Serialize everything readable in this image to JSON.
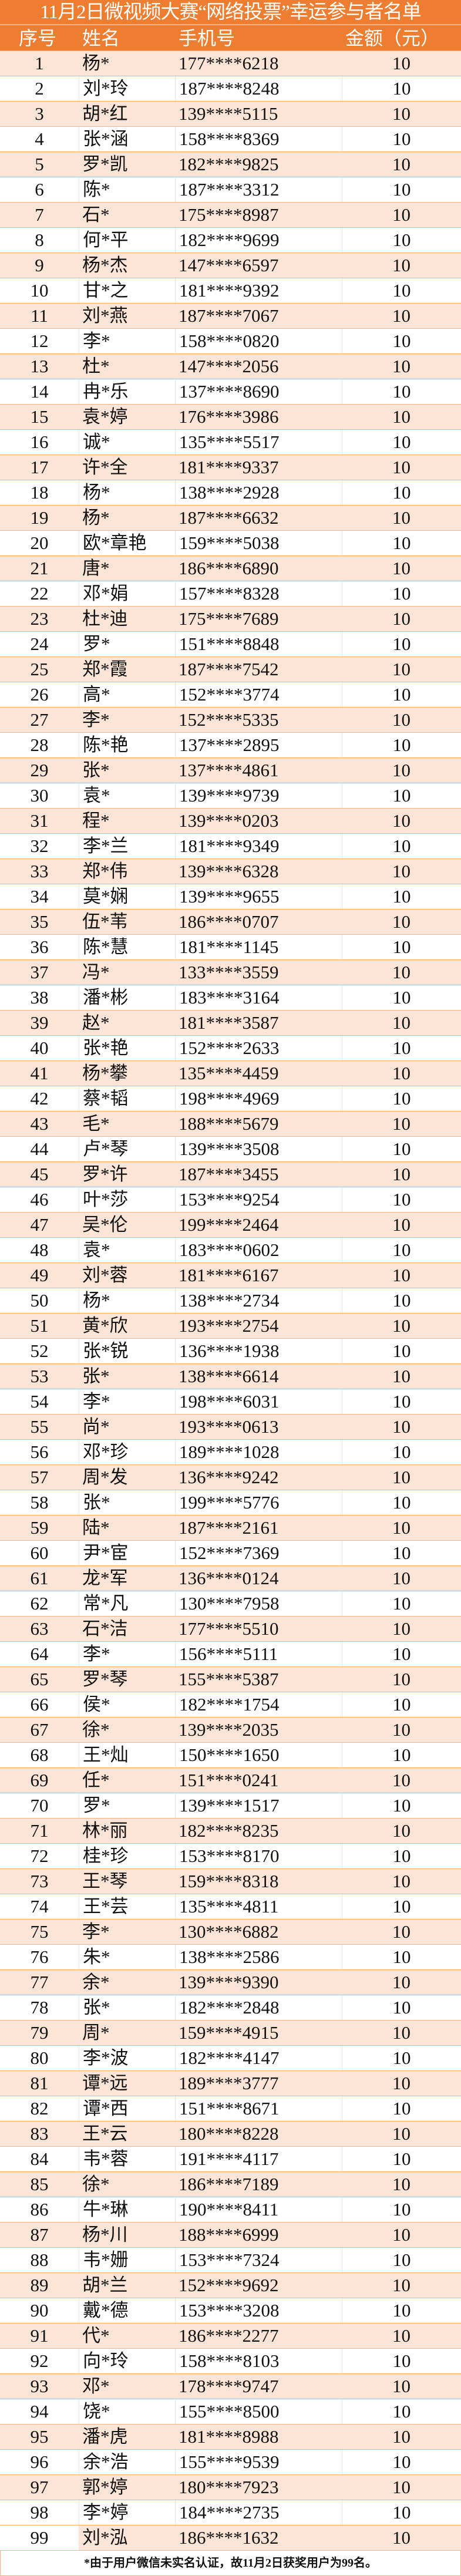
{
  "title": "11月2日微视频大赛“网络投票”幸运参与者名单",
  "colors": {
    "header_bg": "#ed7d31",
    "row_alt_bg": "#fce4d6",
    "border": "#f4b183"
  },
  "columns": [
    "序号",
    "姓名",
    "手机号",
    "金额（元）"
  ],
  "rows": [
    [
      "1",
      "杨*",
      "177****6218",
      "10"
    ],
    [
      "2",
      "刘*玲",
      "187****8248",
      "10"
    ],
    [
      "3",
      "胡*红",
      "139****5115",
      "10"
    ],
    [
      "4",
      "张*涵",
      "158****8369",
      "10"
    ],
    [
      "5",
      "罗*凯",
      "182****9825",
      "10"
    ],
    [
      "6",
      "陈*",
      "187****3312",
      "10"
    ],
    [
      "7",
      "石*",
      "175****8987",
      "10"
    ],
    [
      "8",
      "何*平",
      "182****9699",
      "10"
    ],
    [
      "9",
      "杨*杰",
      "147****6597",
      "10"
    ],
    [
      "10",
      "甘*之",
      "181****9392",
      "10"
    ],
    [
      "11",
      "刘*燕",
      "187****7067",
      "10"
    ],
    [
      "12",
      "李*",
      "158****0820",
      "10"
    ],
    [
      "13",
      "杜*",
      "147****2056",
      "10"
    ],
    [
      "14",
      "冉*乐",
      "137****8690",
      "10"
    ],
    [
      "15",
      "袁*婷",
      "176****3986",
      "10"
    ],
    [
      "16",
      "诚*",
      "135****5517",
      "10"
    ],
    [
      "17",
      "许*全",
      "181****9337",
      "10"
    ],
    [
      "18",
      "杨*",
      "138****2928",
      "10"
    ],
    [
      "19",
      "杨*",
      "187****6632",
      "10"
    ],
    [
      "20",
      "欧*章艳",
      "159****5038",
      "10"
    ],
    [
      "21",
      "唐*",
      "186****6890",
      "10"
    ],
    [
      "22",
      "邓*娟",
      "157****8328",
      "10"
    ],
    [
      "23",
      "杜*迪",
      "175****7689",
      "10"
    ],
    [
      "24",
      "罗*",
      "151****8848",
      "10"
    ],
    [
      "25",
      "郑*霞",
      "187****7542",
      "10"
    ],
    [
      "26",
      "高*",
      "152****3774",
      "10"
    ],
    [
      "27",
      "李*",
      "152****5335",
      "10"
    ],
    [
      "28",
      "陈*艳",
      "137****2895",
      "10"
    ],
    [
      "29",
      "张*",
      "137****4861",
      "10"
    ],
    [
      "30",
      "袁*",
      "139****9739",
      "10"
    ],
    [
      "31",
      "程*",
      "139****0203",
      "10"
    ],
    [
      "32",
      "李*兰",
      "181****9349",
      "10"
    ],
    [
      "33",
      "郑*伟",
      "139****6328",
      "10"
    ],
    [
      "34",
      "莫*娴",
      "139****9655",
      "10"
    ],
    [
      "35",
      "伍*苇",
      "186****0707",
      "10"
    ],
    [
      "36",
      "陈*慧",
      "181****1145",
      "10"
    ],
    [
      "37",
      "冯*",
      "133****3559",
      "10"
    ],
    [
      "38",
      "潘*彬",
      "183****3164",
      "10"
    ],
    [
      "39",
      "赵*",
      "181****3587",
      "10"
    ],
    [
      "40",
      "张*艳",
      "152****2633",
      "10"
    ],
    [
      "41",
      "杨*攀",
      "135****4459",
      "10"
    ],
    [
      "42",
      "蔡*韬",
      "198****4969",
      "10"
    ],
    [
      "43",
      "毛*",
      "188****5679",
      "10"
    ],
    [
      "44",
      "卢*琴",
      "139****3508",
      "10"
    ],
    [
      "45",
      "罗*许",
      "187****3455",
      "10"
    ],
    [
      "46",
      "叶*莎",
      "153****9254",
      "10"
    ],
    [
      "47",
      "吴*伦",
      "199****2464",
      "10"
    ],
    [
      "48",
      "袁*",
      "183****0602",
      "10"
    ],
    [
      "49",
      "刘*蓉",
      "181****6167",
      "10"
    ],
    [
      "50",
      "杨*",
      "138****2734",
      "10"
    ],
    [
      "51",
      "黄*欣",
      "193****2754",
      "10"
    ],
    [
      "52",
      "张*锐",
      "136****1938",
      "10"
    ],
    [
      "53",
      "张*",
      "138****6614",
      "10"
    ],
    [
      "54",
      "李*",
      "198****6031",
      "10"
    ],
    [
      "55",
      "尚*",
      "193****0613",
      "10"
    ],
    [
      "56",
      "邓*珍",
      "189****1028",
      "10"
    ],
    [
      "57",
      "周*发",
      "136****9242",
      "10"
    ],
    [
      "58",
      "张*",
      "199****5776",
      "10"
    ],
    [
      "59",
      "陆*",
      "187****2161",
      "10"
    ],
    [
      "60",
      "尹*宦",
      "152****7369",
      "10"
    ],
    [
      "61",
      "龙*军",
      "136****0124",
      "10"
    ],
    [
      "62",
      "常*凡",
      "130****7958",
      "10"
    ],
    [
      "63",
      "石*洁",
      "177****5510",
      "10"
    ],
    [
      "64",
      "李*",
      "156****5111",
      "10"
    ],
    [
      "65",
      "罗*琴",
      "155****5387",
      "10"
    ],
    [
      "66",
      "侯*",
      "182****1754",
      "10"
    ],
    [
      "67",
      "徐*",
      "139****2035",
      "10"
    ],
    [
      "68",
      "王*灿",
      "150****1650",
      "10"
    ],
    [
      "69",
      "任*",
      "151****0241",
      "10"
    ],
    [
      "70",
      "罗*",
      "139****1517",
      "10"
    ],
    [
      "71",
      "林*丽",
      "182****8235",
      "10"
    ],
    [
      "72",
      "桂*珍",
      "153****8170",
      "10"
    ],
    [
      "73",
      "王*琴",
      "159****8318",
      "10"
    ],
    [
      "74",
      "王*芸",
      "135****4811",
      "10"
    ],
    [
      "75",
      "李*",
      "130****6882",
      "10"
    ],
    [
      "76",
      "朱*",
      "138****2586",
      "10"
    ],
    [
      "77",
      "余*",
      "139****9390",
      "10"
    ],
    [
      "78",
      "张*",
      "182****2848",
      "10"
    ],
    [
      "79",
      "周*",
      "159****4915",
      "10"
    ],
    [
      "80",
      "李*波",
      "182****4147",
      "10"
    ],
    [
      "81",
      "谭*远",
      "189****3777",
      "10"
    ],
    [
      "82",
      "谭*西",
      "151****8671",
      "10"
    ],
    [
      "83",
      "王*云",
      "180****8228",
      "10"
    ],
    [
      "84",
      "韦*蓉",
      "191****4117",
      "10"
    ],
    [
      "85",
      "徐*",
      "186****7189",
      "10"
    ],
    [
      "86",
      "牛*琳",
      "190****8411",
      "10"
    ],
    [
      "87",
      "杨*川",
      "188****6999",
      "10"
    ],
    [
      "88",
      "韦*姗",
      "153****7324",
      "10"
    ],
    [
      "89",
      "胡*兰",
      "152****9692",
      "10"
    ],
    [
      "90",
      "戴*德",
      "153****3208",
      "10"
    ],
    [
      "91",
      "代*",
      "186****2277",
      "10"
    ],
    [
      "92",
      "向*玲",
      "158****8103",
      "10"
    ],
    [
      "93",
      "邓*",
      "178****9747",
      "10"
    ],
    [
      "94",
      "饶*",
      "155****8500",
      "10"
    ],
    [
      "95",
      "潘*虎",
      "181****8988",
      "10"
    ],
    [
      "96",
      "余*浩",
      "155****9539",
      "10"
    ],
    [
      "97",
      "郭*婷",
      "180****7923",
      "10"
    ],
    [
      "98",
      "李*婷",
      "184****2735",
      "10"
    ],
    [
      "99",
      "刘*泓",
      "186****1632",
      "10"
    ]
  ],
  "footnote": "*由于用户微信未实名认证，故11月2日获奖用户为99名。"
}
